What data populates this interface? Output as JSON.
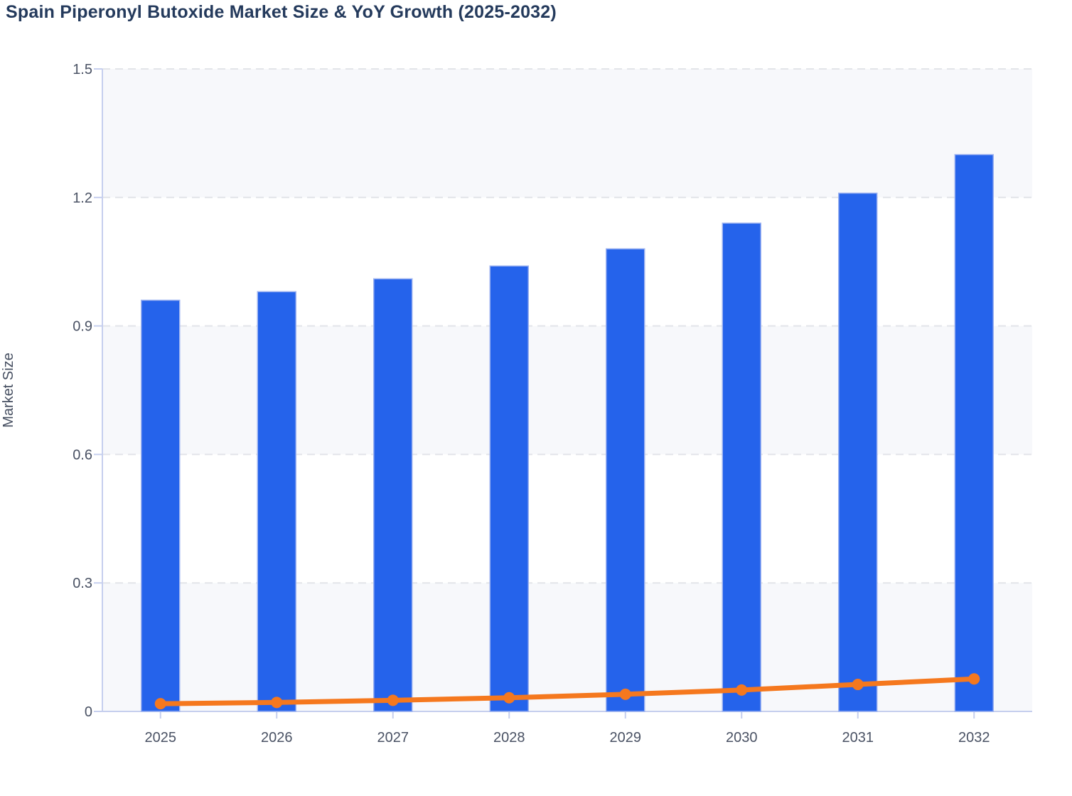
{
  "chart_data": {
    "type": "bar",
    "title": "Spain Piperonyl Butoxide Market Size & YoY Growth (2025-2032)",
    "categories": [
      "2025",
      "2026",
      "2027",
      "2028",
      "2029",
      "2030",
      "2031",
      "2032"
    ],
    "series": [
      {
        "name": "Market Size",
        "kind": "bar",
        "values": [
          0.96,
          0.98,
          1.01,
          1.04,
          1.08,
          1.14,
          1.21,
          1.3
        ]
      },
      {
        "name": "YoY Growth",
        "kind": "line",
        "values": [
          0.018,
          0.021,
          0.026,
          0.032,
          0.04,
          0.05,
          0.063,
          0.076
        ]
      }
    ],
    "xlabel": "",
    "ylabel": "Market Size",
    "ylim": [
      0,
      1.5
    ],
    "yticks": [
      0,
      0.3,
      0.6,
      0.9,
      1.2,
      1.5
    ],
    "ytick_labels": [
      "0",
      "0.3",
      "0.6",
      "0.9",
      "1.2",
      "1.5"
    ],
    "grid": "horizontal-dashed",
    "bands": "alternating-horizontal",
    "legend": "none"
  },
  "colors": {
    "bar_fill": "#2563eb",
    "bar_border": "#9cb2f0",
    "line": "#f5781e",
    "marker": "#f5781e",
    "axis": "#c6cfee",
    "gridline": "#e2e4e9",
    "band": "#f7f8fb",
    "tick_label": "#4a5264",
    "axis_title": "#454e60",
    "title": "#243a5c",
    "background": "#ffffff"
  }
}
